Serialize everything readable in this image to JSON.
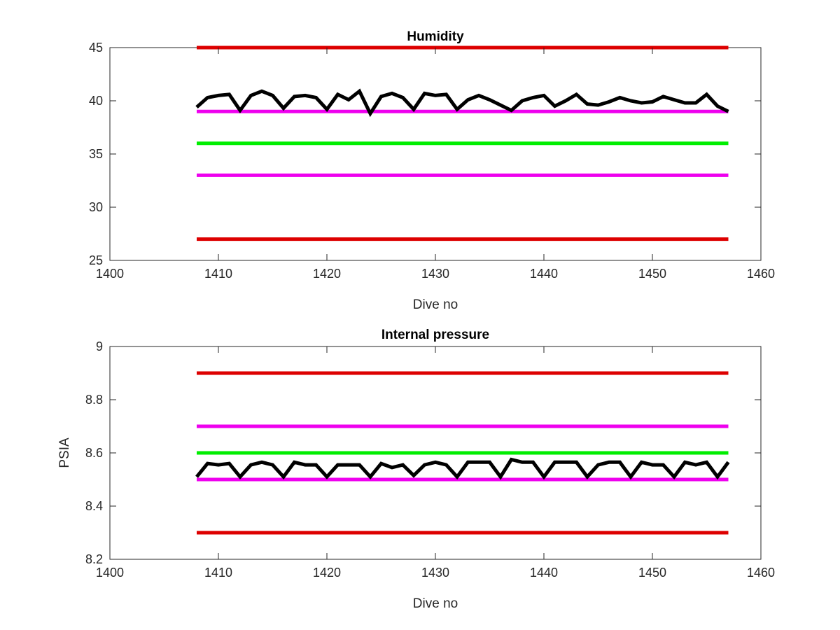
{
  "chart_data": [
    {
      "type": "line",
      "title": "Humidity",
      "xlabel": "Dive no",
      "ylabel": "",
      "xlim": [
        1400,
        1460
      ],
      "ylim": [
        25,
        45
      ],
      "xticks": [
        1400,
        1410,
        1420,
        1430,
        1440,
        1450,
        1460
      ],
      "yticks": [
        25,
        30,
        35,
        40,
        45
      ],
      "xtick_labels": [
        "1400",
        "1410",
        "1420",
        "1430",
        "1440",
        "1450",
        "1460"
      ],
      "ytick_labels": [
        "25",
        "30",
        "35",
        "40",
        "45"
      ],
      "grid": false,
      "series": [
        {
          "color": "#dd0000",
          "x": [
            1408,
            1457
          ],
          "y": [
            45,
            45
          ]
        },
        {
          "color": "#ee00ee",
          "x": [
            1408,
            1457
          ],
          "y": [
            39,
            39
          ]
        },
        {
          "color": "#00ee00",
          "x": [
            1408,
            1457
          ],
          "y": [
            36,
            36
          ]
        },
        {
          "color": "#ee00ee",
          "x": [
            1408,
            1457
          ],
          "y": [
            33,
            33
          ]
        },
        {
          "color": "#dd0000",
          "x": [
            1408,
            1457
          ],
          "y": [
            27,
            27
          ]
        },
        {
          "color": "#000000",
          "x": [
            1408,
            1409,
            1410,
            1411,
            1412,
            1413,
            1414,
            1415,
            1416,
            1417,
            1418,
            1419,
            1420,
            1421,
            1422,
            1423,
            1424,
            1425,
            1426,
            1427,
            1428,
            1429,
            1430,
            1431,
            1432,
            1433,
            1434,
            1435,
            1436,
            1437,
            1438,
            1439,
            1440,
            1441,
            1442,
            1443,
            1444,
            1445,
            1446,
            1447,
            1448,
            1449,
            1450,
            1451,
            1452,
            1453,
            1454,
            1455,
            1456,
            1457
          ],
          "y": [
            39.4,
            40.3,
            40.5,
            40.6,
            39.1,
            40.5,
            40.9,
            40.5,
            39.3,
            40.4,
            40.5,
            40.3,
            39.2,
            40.6,
            40.1,
            40.9,
            38.8,
            40.4,
            40.7,
            40.3,
            39.2,
            40.7,
            40.5,
            40.6,
            39.2,
            40.1,
            40.5,
            40.1,
            39.6,
            39.1,
            40.0,
            40.3,
            40.5,
            39.5,
            40.0,
            40.6,
            39.7,
            39.6,
            39.9,
            40.3,
            40.0,
            39.8,
            39.9,
            40.4,
            40.1,
            39.8,
            39.8,
            40.6,
            39.5,
            39.0
          ]
        }
      ]
    },
    {
      "type": "line",
      "title": "Internal pressure",
      "xlabel": "Dive no",
      "ylabel": "PSIA",
      "xlim": [
        1400,
        1460
      ],
      "ylim": [
        8.2,
        9
      ],
      "xticks": [
        1400,
        1410,
        1420,
        1430,
        1440,
        1450,
        1460
      ],
      "yticks": [
        8.2,
        8.4,
        8.6,
        8.8,
        9
      ],
      "xtick_labels": [
        "1400",
        "1410",
        "1420",
        "1430",
        "1440",
        "1450",
        "1460"
      ],
      "ytick_labels": [
        "8.2",
        "8.4",
        "8.6",
        "8.8",
        "9"
      ],
      "grid": false,
      "series": [
        {
          "color": "#dd0000",
          "x": [
            1408,
            1457
          ],
          "y": [
            8.9,
            8.9
          ]
        },
        {
          "color": "#ee00ee",
          "x": [
            1408,
            1457
          ],
          "y": [
            8.7,
            8.7
          ]
        },
        {
          "color": "#00ee00",
          "x": [
            1408,
            1457
          ],
          "y": [
            8.6,
            8.6
          ]
        },
        {
          "color": "#ee00ee",
          "x": [
            1408,
            1457
          ],
          "y": [
            8.5,
            8.5
          ]
        },
        {
          "color": "#dd0000",
          "x": [
            1408,
            1457
          ],
          "y": [
            8.3,
            8.3
          ]
        },
        {
          "color": "#000000",
          "x": [
            1408,
            1409,
            1410,
            1411,
            1412,
            1413,
            1414,
            1415,
            1416,
            1417,
            1418,
            1419,
            1420,
            1421,
            1422,
            1423,
            1424,
            1425,
            1426,
            1427,
            1428,
            1429,
            1430,
            1431,
            1432,
            1433,
            1434,
            1435,
            1436,
            1437,
            1438,
            1439,
            1440,
            1441,
            1442,
            1443,
            1444,
            1445,
            1446,
            1447,
            1448,
            1449,
            1450,
            1451,
            1452,
            1453,
            1454,
            1455,
            1456,
            1457
          ],
          "y": [
            8.51,
            8.56,
            8.555,
            8.56,
            8.51,
            8.555,
            8.565,
            8.555,
            8.51,
            8.565,
            8.555,
            8.555,
            8.51,
            8.555,
            8.555,
            8.555,
            8.51,
            8.56,
            8.545,
            8.555,
            8.515,
            8.555,
            8.565,
            8.555,
            8.51,
            8.565,
            8.565,
            8.565,
            8.51,
            8.575,
            8.565,
            8.565,
            8.51,
            8.565,
            8.565,
            8.565,
            8.51,
            8.555,
            8.565,
            8.565,
            8.51,
            8.565,
            8.555,
            8.555,
            8.51,
            8.565,
            8.555,
            8.565,
            8.51,
            8.565
          ]
        }
      ]
    }
  ]
}
